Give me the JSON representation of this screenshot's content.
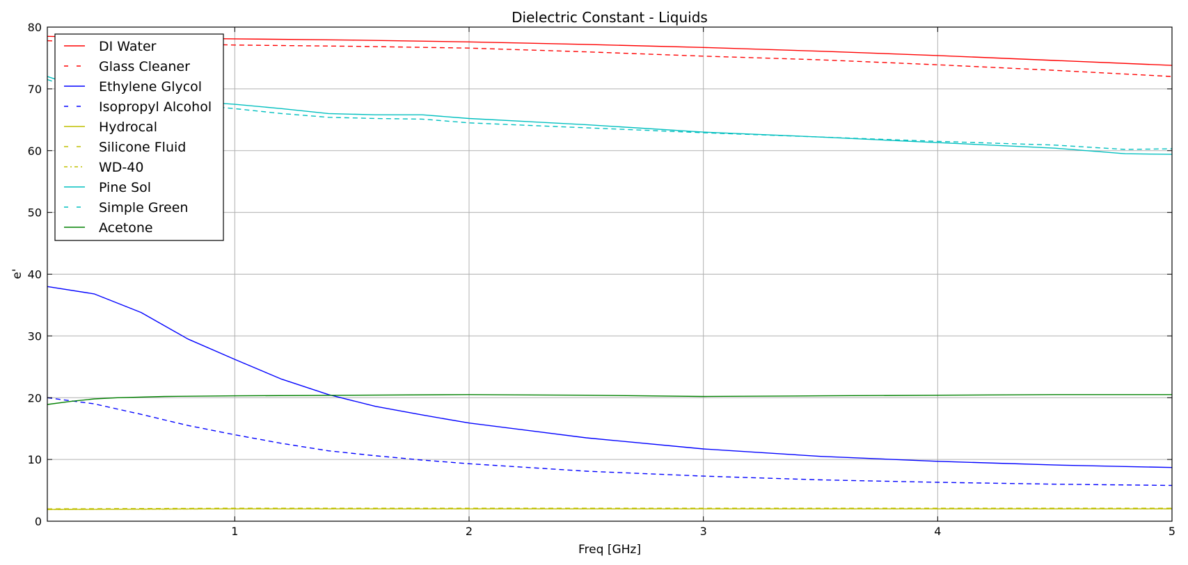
{
  "chart_data": {
    "type": "line",
    "title": "Dielectric Constant - Liquids",
    "xlabel": "Freq [GHz]",
    "ylabel": "e'",
    "xlim": [
      0.2,
      5
    ],
    "ylim": [
      0,
      80
    ],
    "xticks": [
      1,
      2,
      3,
      4,
      5
    ],
    "xtick_labels": [
      "1",
      "2",
      "3",
      "4",
      "5"
    ],
    "yticks": [
      0,
      10,
      20,
      30,
      40,
      50,
      60,
      70,
      80
    ],
    "ytick_labels": [
      "0",
      "10",
      "20",
      "30",
      "40",
      "50",
      "60",
      "70",
      "80"
    ],
    "grid": true,
    "legend": "top-left",
    "series": [
      {
        "name": "DI Water",
        "color": "#ff0000",
        "dash": "solid",
        "x": [
          0.2,
          0.5,
          1.0,
          1.5,
          2.0,
          2.5,
          3.0,
          3.5,
          4.0,
          4.5,
          5.0
        ],
        "y": [
          78.5,
          78.3,
          78.1,
          77.9,
          77.6,
          77.2,
          76.7,
          76.1,
          75.4,
          74.6,
          73.8
        ]
      },
      {
        "name": "Glass Cleaner",
        "color": "#ff0000",
        "dash": "dashed",
        "x": [
          0.2,
          0.5,
          1.0,
          1.5,
          2.0,
          2.5,
          3.0,
          3.5,
          4.0,
          4.5,
          5.0
        ],
        "y": [
          77.8,
          77.5,
          77.1,
          76.9,
          76.6,
          76.0,
          75.3,
          74.7,
          73.9,
          73.0,
          72.0
        ]
      },
      {
        "name": "Ethylene Glycol",
        "color": "#0000ff",
        "dash": "solid",
        "x": [
          0.2,
          0.4,
          0.6,
          0.8,
          1.0,
          1.2,
          1.4,
          1.6,
          1.8,
          2.0,
          2.5,
          3.0,
          3.5,
          4.0,
          4.5,
          5.0
        ],
        "y": [
          38.0,
          36.8,
          33.8,
          29.5,
          26.2,
          23.0,
          20.5,
          18.6,
          17.2,
          15.9,
          13.5,
          11.7,
          10.5,
          9.7,
          9.1,
          8.7
        ]
      },
      {
        "name": "Isopropyl Alcohol",
        "color": "#0000ff",
        "dash": "dashed",
        "x": [
          0.2,
          0.4,
          0.6,
          0.8,
          1.0,
          1.2,
          1.4,
          1.6,
          1.8,
          2.0,
          2.5,
          3.0,
          3.5,
          4.0,
          4.5,
          5.0
        ],
        "y": [
          20.0,
          19.0,
          17.3,
          15.5,
          14.0,
          12.6,
          11.4,
          10.6,
          9.9,
          9.3,
          8.1,
          7.3,
          6.7,
          6.3,
          6.0,
          5.8
        ]
      },
      {
        "name": "Hydrocal",
        "color": "#bfbf00",
        "dash": "solid",
        "x": [
          0.2,
          1.0,
          2.0,
          3.0,
          4.0,
          5.0
        ],
        "y": [
          1.9,
          2.0,
          2.0,
          2.0,
          2.0,
          2.0
        ]
      },
      {
        "name": "Silicone Fluid",
        "color": "#bfbf00",
        "dash": "dashed",
        "x": [
          0.2,
          1.0,
          2.0,
          3.0,
          4.0,
          5.0
        ],
        "y": [
          2.0,
          2.1,
          2.1,
          2.1,
          2.1,
          2.1
        ]
      },
      {
        "name": "WD-40",
        "color": "#bfbf00",
        "dash": "dashdot",
        "x": [
          0.2,
          1.0,
          2.0,
          3.0,
          4.0,
          5.0
        ],
        "y": [
          1.9,
          2.0,
          2.0,
          2.0,
          2.0,
          2.0
        ]
      },
      {
        "name": "Pine Sol",
        "color": "#00bfbf",
        "dash": "solid",
        "x": [
          0.2,
          0.4,
          0.6,
          0.8,
          1.0,
          1.2,
          1.4,
          1.6,
          1.8,
          2.0,
          2.5,
          3.0,
          3.5,
          4.0,
          4.5,
          4.8,
          5.0
        ],
        "y": [
          72.0,
          69.5,
          68.5,
          68.0,
          67.5,
          66.8,
          66.0,
          65.8,
          65.8,
          65.2,
          64.2,
          63.0,
          62.2,
          61.3,
          60.4,
          59.5,
          59.4
        ]
      },
      {
        "name": "Simple Green",
        "color": "#00bfbf",
        "dash": "dashed",
        "x": [
          0.2,
          0.4,
          0.6,
          0.8,
          1.0,
          1.2,
          1.4,
          1.6,
          1.8,
          2.0,
          2.5,
          3.0,
          3.5,
          4.0,
          4.5,
          4.8,
          5.0
        ],
        "y": [
          71.5,
          69.0,
          68.0,
          67.5,
          66.8,
          66.0,
          65.4,
          65.2,
          65.1,
          64.5,
          63.7,
          62.9,
          62.2,
          61.5,
          60.9,
          60.2,
          60.3
        ]
      },
      {
        "name": "Acetone",
        "color": "#008000",
        "dash": "solid",
        "x": [
          0.2,
          0.3,
          0.4,
          0.5,
          0.7,
          1.0,
          1.5,
          2.0,
          2.5,
          3.0,
          3.5,
          4.0,
          4.5,
          5.0
        ],
        "y": [
          18.9,
          19.4,
          19.8,
          20.0,
          20.2,
          20.3,
          20.4,
          20.5,
          20.4,
          20.2,
          20.3,
          20.4,
          20.5,
          20.5
        ]
      }
    ]
  }
}
